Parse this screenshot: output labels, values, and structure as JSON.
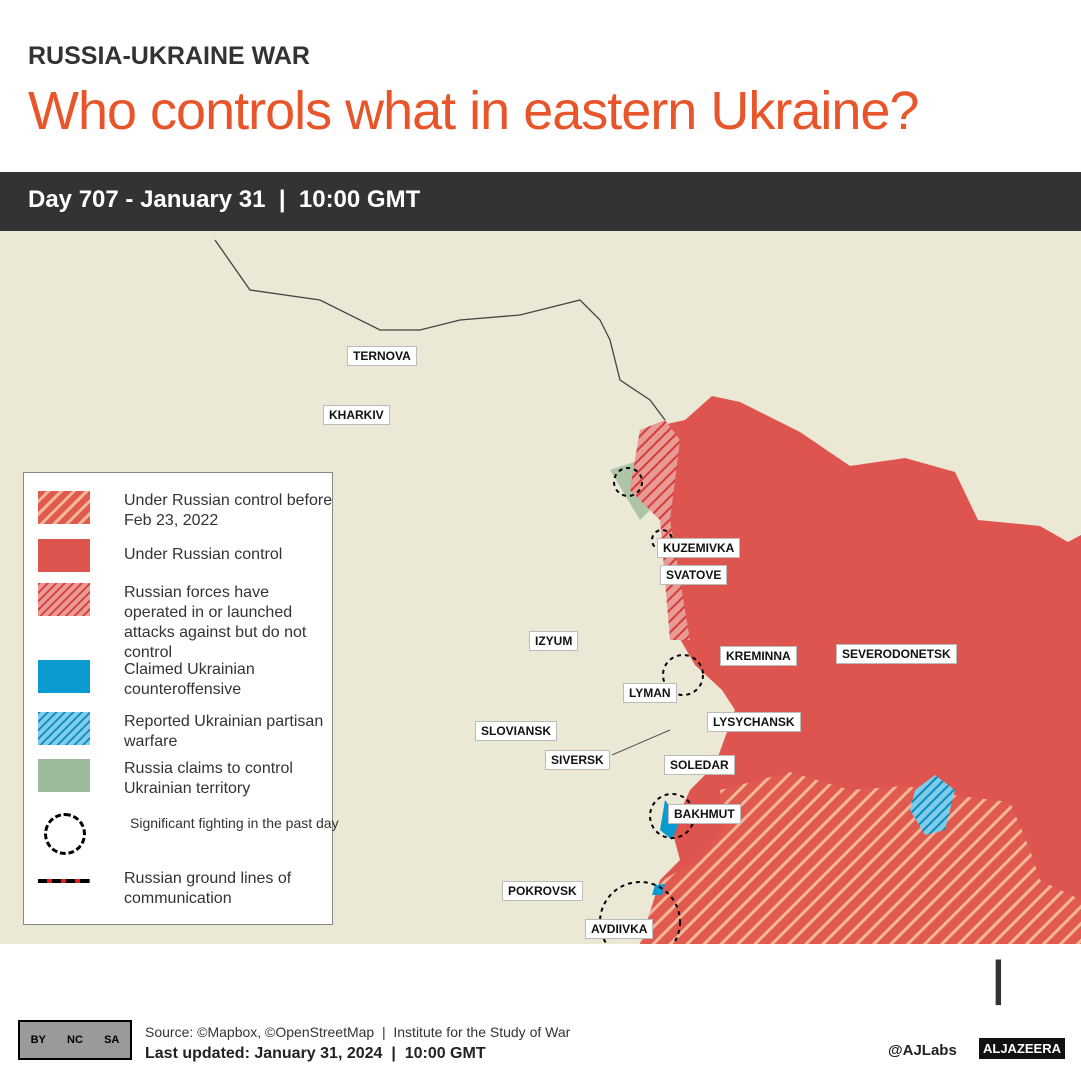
{
  "header": {
    "kicker": "RUSSIA-UKRAINE WAR",
    "title": "Who controls what in eastern Ukraine?",
    "dateline": "Day 707 - January 31  |  10:00 GMT"
  },
  "map": {
    "places": [
      "TERNOVA",
      "KHARKIV",
      "KUZEMIVKA",
      "SVATOVE",
      "IZYUM",
      "KREMINNA",
      "SEVERODONETSK",
      "LYMAN",
      "LYSYCHANSK",
      "SLOVIANSK",
      "SIVERSK",
      "SOLEDAR",
      "BAKHMUT",
      "POKROVSK",
      "AVDIIVKA"
    ]
  },
  "legend": {
    "items": [
      {
        "label": "Under Russian control before Feb 23, 2022",
        "color": "#e05a50"
      },
      {
        "label": "Under Russian control",
        "color": "#de5550"
      },
      {
        "label": "Russian forces have operated in or launched attacks against but do not control",
        "color": "#e89a95"
      },
      {
        "label": "Claimed Ukrainian counteroffensive",
        "color": "#0a9bd0"
      },
      {
        "label": "Reported Ukrainian partisan warfare",
        "color": "#3fb3dd"
      },
      {
        "label": "Russia claims to control Ukrainian territory",
        "color": "#9dbb9a"
      },
      {
        "label": "Significant fighting in the past day"
      },
      {
        "label": "Russian ground lines of communication"
      }
    ]
  },
  "footer": {
    "source": "Source: ©Mapbox, ©OpenStreetMap  |  Institute for the Study of War",
    "updated": "Last updated: January 31, 2024  |  10:00 GMT",
    "cc": [
      "BY",
      "NC",
      "SA"
    ],
    "handle": "@AJLabs",
    "brand": "ALJAZEERA"
  }
}
